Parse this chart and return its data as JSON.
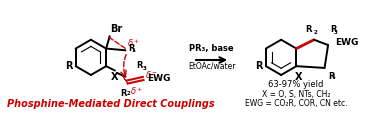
{
  "background_color": "#ffffff",
  "red_text": "Phosphine-Mediated Direct Couplings",
  "arrow_text_line1": "PR₃, base",
  "arrow_text_line2": "EtOAc/water",
  "yield_text": "63-97% yield",
  "x_text": "X = O, S, NTs, CH₂",
  "ewg_text": "EWG = CO₂R, COR, CN etc.",
  "red_color": "#cc0000",
  "black_color": "#000000",
  "figsize": [
    3.78,
    1.2
  ],
  "dpi": 100
}
